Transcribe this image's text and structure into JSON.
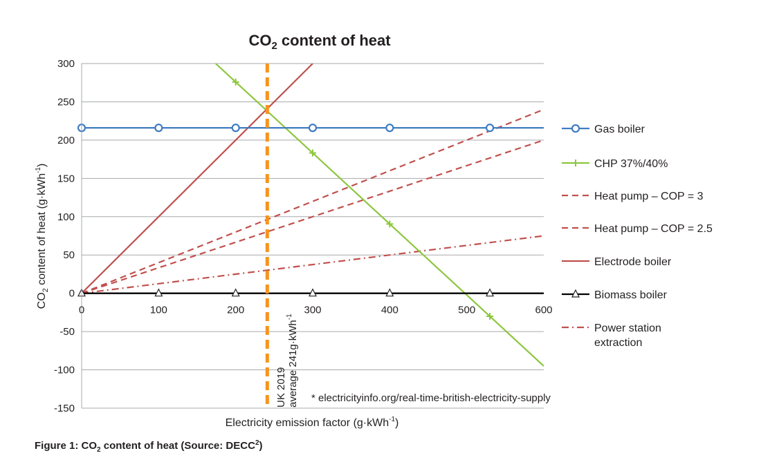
{
  "chart_data": {
    "type": "line",
    "title_parts": [
      "CO",
      "2",
      " content of heat"
    ],
    "xlabel_parts": [
      "Electricity emission factor (g·kWh",
      "-1",
      ")"
    ],
    "ylabel_parts": [
      "CO",
      "2",
      " content of heat (g·kWh",
      "-1",
      ")"
    ],
    "xlim": [
      0,
      600
    ],
    "ylim": [
      -150,
      300
    ],
    "xticks": [
      0,
      100,
      200,
      300,
      400,
      500,
      600
    ],
    "yticks": [
      -150,
      -100,
      -50,
      0,
      50,
      100,
      150,
      200,
      250,
      300
    ],
    "grid": true,
    "legend_position": "right",
    "series": [
      {
        "name": "Gas boiler",
        "color": "#3f7cc0",
        "dash": "solid",
        "marker": "circle",
        "x": [
          0,
          600
        ],
        "y": [
          216,
          216
        ],
        "marker_x": [
          0,
          100,
          200,
          300,
          400,
          530
        ]
      },
      {
        "name": "CHP 37%/40%",
        "color": "#8dc63f",
        "dash": "solid",
        "marker": "plus",
        "x": [
          174,
          600
        ],
        "y": [
          300,
          -95
        ],
        "marker_x": [
          200,
          300,
          400,
          530
        ]
      },
      {
        "name": "Heat pump – COP = 3",
        "color": "#c0504d",
        "dash": "dash",
        "x": [
          0,
          600
        ],
        "y": [
          0,
          200
        ]
      },
      {
        "name": "Heat pump – COP = 2.5",
        "color": "#c0504d",
        "dash": "dash",
        "x": [
          0,
          600
        ],
        "y": [
          0,
          240
        ]
      },
      {
        "name": "Electrode boiler",
        "color": "#c0504d",
        "dash": "solid",
        "x": [
          0,
          300
        ],
        "y": [
          0,
          300
        ]
      },
      {
        "name": "Biomass boiler",
        "color": "#000000",
        "dash": "solid",
        "marker": "triangle",
        "x": [
          0,
          600
        ],
        "y": [
          0,
          0
        ],
        "marker_x": [
          0,
          100,
          200,
          300,
          400,
          530
        ]
      },
      {
        "name_lines": [
          "Power station",
          "extraction"
        ],
        "color": "#c0504d",
        "dash": "dashdot",
        "x": [
          0,
          600
        ],
        "y": [
          0,
          75
        ]
      }
    ],
    "annotations": {
      "vline": {
        "x": 241,
        "color": "#f7941d",
        "label_lines": [
          "UK 2019",
          "average 241g·kWh",
          "-1"
        ]
      },
      "footnote": "* electricityinfo.org/real-time-british-electricity-supply"
    }
  },
  "caption_parts": [
    "Figure 1: CO",
    "2",
    " content of heat (Source: DECC",
    "2",
    ")"
  ]
}
